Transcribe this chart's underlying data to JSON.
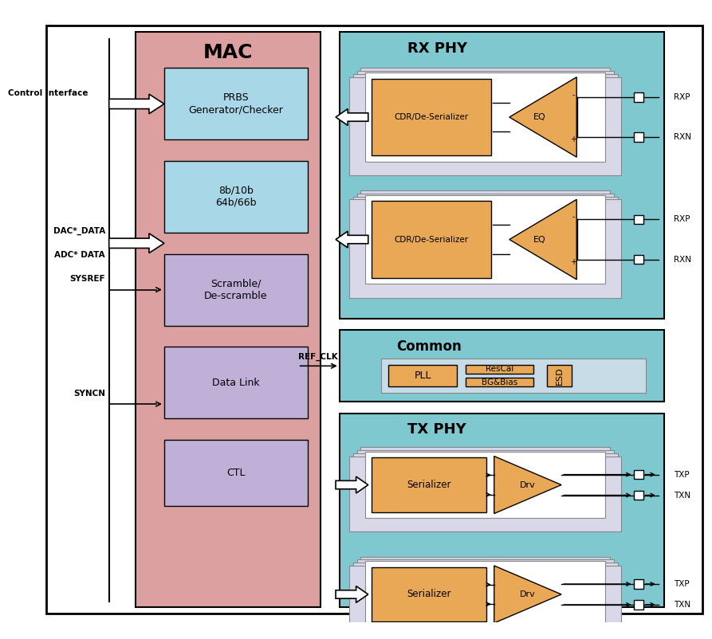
{
  "fig_width": 8.93,
  "fig_height": 8.02,
  "bg_color": "#ffffff",
  "mac_bg": "#dda0a0",
  "rx_tx_bg": "#7fc8d0",
  "cyan_box": "#a8d8e8",
  "lavender_box": "#c0b0d8",
  "orange_box": "#e8a855",
  "light_gray_box": "#d0d0e0",
  "title_mac": "MAC",
  "title_rx": "RX PHY",
  "title_common": "Common",
  "title_tx": "TX PHY",
  "labels": {
    "prbs": "PRBS\nGenerator/Checker",
    "encode": "8b/10b\n64b/66b",
    "scramble": "Scramble/\nDe-scramble",
    "datalink": "Data Link",
    "ctl": "CTL",
    "cdr1": "CDR/De-Serializer",
    "cdr2": "CDR/De-Serializer",
    "eq1": "EQ",
    "eq2": "EQ",
    "pll": "PLL",
    "rescal": "ResCal",
    "bgbias": "BG&Bias",
    "esd": "ESD",
    "ser1": "Serializer",
    "ser2": "Serializer",
    "drv1": "Drv",
    "drv2": "Drv"
  },
  "port_labels": {
    "rxp1": "RXP",
    "rxn1": "RXN",
    "rxp2": "RXP",
    "rxn2": "RXN",
    "txp1": "TXP",
    "txn1": "TXN",
    "txp2": "TXP",
    "txn2": "TXN"
  },
  "signal_labels": {
    "ctrl": "Control Interface",
    "dac": "DAC*_DATA",
    "adc": "ADC* DATA",
    "sysref": "SYSREF",
    "syncn": "SYNCN",
    "refclk": "REF_CLK"
  }
}
